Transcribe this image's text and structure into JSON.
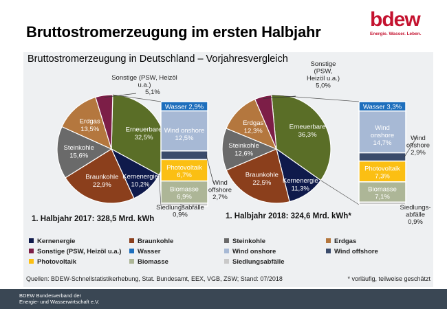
{
  "page": {
    "title": "Bruttostromerzeugung im ersten Halbjahr",
    "subtitle": "Bruttostromerzeugung in Deutschland – Vorjahresvergleich",
    "logo_text": "bdew",
    "logo_tagline": "Energie. Wasser. Leben.",
    "footer_line1": "BDEW Bundesverband der",
    "footer_line2": "Energie- und Wasserwirtschaft e.V."
  },
  "colors": {
    "Kernenergie": "#0f1a4b",
    "Braunkohle": "#8b3f1c",
    "Steinkohle": "#6a6a6a",
    "Erdgas": "#b4773e",
    "Sonstige": "#7c1e47",
    "Erneuerbare": "#5a6e27",
    "Wasser": "#1e6fbd",
    "Wind onshore": "#a7b9d5",
    "Wind offshore": "#3a4b6b",
    "Photovoltaik": "#fbbf13",
    "Biomasse": "#adb697",
    "Siedlungsabfälle": "#c9c9c9"
  },
  "chart_data": [
    {
      "type": "pie",
      "title": "1. Halbjahr 2017:  328,5 Mrd. kWh",
      "slices": [
        {
          "name": "Erneuerbare",
          "label": "Erneuerbare",
          "value": 32.5,
          "display": "32,5%"
        },
        {
          "name": "Kernenergie",
          "label": "Kernenergie",
          "value": 10.2,
          "display": "10,2%"
        },
        {
          "name": "Braunkohle",
          "label": "Braunkohle",
          "value": 22.9,
          "display": "22,9%"
        },
        {
          "name": "Steinkohle",
          "label": "Steinkohle",
          "value": 15.6,
          "display": "15,6%"
        },
        {
          "name": "Erdgas",
          "label": "Erdgas",
          "value": 13.5,
          "display": "13,5%"
        },
        {
          "name": "Sonstige",
          "label": "Sonstige (PSW, Heizöl u.a.)",
          "value": 5.1,
          "display": "5,1%"
        }
      ],
      "breakdown": [
        {
          "name": "Wasser",
          "label": "Wasser",
          "value": 2.9,
          "display": "2,9%"
        },
        {
          "name": "Wind onshore",
          "label": "Wind onshore",
          "value": 12.5,
          "display": "12,5%"
        },
        {
          "name": "Wind offshore",
          "label": "Wind offshore",
          "value": 2.7,
          "display": "2,7%"
        },
        {
          "name": "Photovoltaik",
          "label": "Photovoltaik",
          "value": 6.7,
          "display": "6,7%"
        },
        {
          "name": "Biomasse",
          "label": "Biomasse",
          "value": 6.9,
          "display": "6,9%"
        },
        {
          "name": "Siedlungsabfälle",
          "label": "Siedlungsabfälle",
          "value": 0.9,
          "display": "0,9%"
        }
      ]
    },
    {
      "type": "pie",
      "title": "1. Halbjahr 2018: 324,6 Mrd. kWh*",
      "slices": [
        {
          "name": "Erneuerbare",
          "label": "Erneuerbare",
          "value": 36.3,
          "display": "36,3%"
        },
        {
          "name": "Kernenergie",
          "label": "Kernenergie",
          "value": 11.3,
          "display": "11,3%"
        },
        {
          "name": "Braunkohle",
          "label": "Braunkohle",
          "value": 22.5,
          "display": "22,5%"
        },
        {
          "name": "Steinkohle",
          "label": "Steinkohle",
          "value": 12.6,
          "display": "12,6%"
        },
        {
          "name": "Erdgas",
          "label": "Erdgas",
          "value": 12.3,
          "display": "12,3%"
        },
        {
          "name": "Sonstige",
          "label": "Sonstige (PSW, Heizöl u.a.)",
          "value": 5.0,
          "display": "5,0%"
        }
      ],
      "breakdown": [
        {
          "name": "Wasser",
          "label": "Wasser",
          "value": 3.3,
          "display": "3,3%"
        },
        {
          "name": "Wind onshore",
          "label": "Wind onshore",
          "value": 14.7,
          "display": "14,7%"
        },
        {
          "name": "Wind offshore",
          "label": "Wind offshore",
          "value": 2.9,
          "display": "2,9%"
        },
        {
          "name": "Photovoltaik",
          "label": "Photovoltaik",
          "value": 7.3,
          "display": "7,3%"
        },
        {
          "name": "Biomasse",
          "label": "Biomasse",
          "value": 7.1,
          "display": "7,1%"
        },
        {
          "name": "Siedlungsabfälle",
          "label": "Siedlungs-abfälle",
          "value": 0.9,
          "display": "0,9%"
        }
      ]
    }
  ],
  "legend": [
    {
      "name": "Kernenergie",
      "label": "Kernenergie"
    },
    {
      "name": "Braunkohle",
      "label": "Braunkohle"
    },
    {
      "name": "Steinkohle",
      "label": "Steinkohle"
    },
    {
      "name": "Erdgas",
      "label": "Erdgas"
    },
    {
      "name": "Sonstige",
      "label": "Sonstige (PSW, Heizöl u.a.)"
    },
    {
      "name": "Wasser",
      "label": "Wasser"
    },
    {
      "name": "Wind onshore",
      "label": "Wind onshore"
    },
    {
      "name": "Wind offshore",
      "label": "Wind offshore"
    },
    {
      "name": "Photovoltaik",
      "label": "Photovoltaik"
    },
    {
      "name": "Biomasse",
      "label": "Biomasse"
    },
    {
      "name": "Siedlungsabfälle",
      "label": "Siedlungsabfälle"
    }
  ],
  "sources": "Quellen: BDEW-Schnellstatistikerhebung, Stat. Bundesamt, EEX, VGB, ZSW; Stand: 07/2018",
  "footnote": "* vorläufig, teilweise geschätzt"
}
